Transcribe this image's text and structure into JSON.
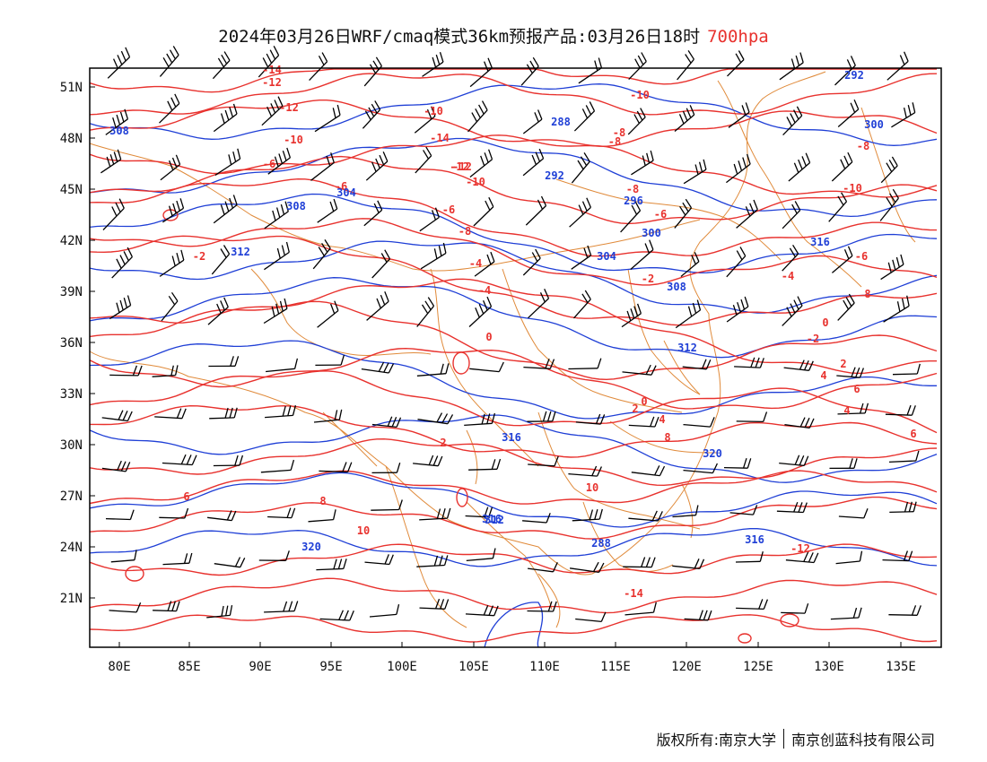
{
  "title": {
    "main": "2024年03月26日WRF/cmaq模式36km预报产品:03月26日18时",
    "level": "700hpa"
  },
  "axes": {
    "lon_labels": [
      "80E",
      "85E",
      "90E",
      "95E",
      "100E",
      "105E",
      "110E",
      "115E",
      "120E",
      "125E",
      "130E",
      "135E"
    ],
    "lat_labels": [
      "51N",
      "48N",
      "45N",
      "42N",
      "39N",
      "36N",
      "33N",
      "30N",
      "27N",
      "24N",
      "21N"
    ]
  },
  "colors": {
    "temperature": "#e8322e",
    "geopotential": "#1f3fd6",
    "border": "#e08a3a",
    "wind": "#000000"
  },
  "temperature_labels": [
    "-14",
    "-12",
    "-12",
    "-10",
    "-10",
    "-12",
    "-14",
    "-12",
    "-10",
    "-8",
    "-8",
    "-6",
    "-6",
    "-6",
    "-8",
    "-6",
    "-4",
    "-4",
    "-2",
    "-2",
    "0",
    "0",
    "2",
    "2",
    "4",
    "4",
    "6",
    "6",
    "8",
    "8",
    "10",
    "10",
    "-14",
    "-12",
    "-10",
    "-8",
    "-6",
    "-4",
    "-2",
    "0",
    "2",
    "4",
    "6",
    "8",
    "-10",
    "-8"
  ],
  "geopotential_labels": [
    "308",
    "304",
    "308",
    "312",
    "288",
    "292",
    "296",
    "300",
    "304",
    "308",
    "312",
    "316",
    "316",
    "320",
    "288",
    "292",
    "300",
    "316",
    "320",
    "316",
    "312"
  ],
  "footer": {
    "left": "版权所有:南京大学",
    "right": "南京创蓝科技有限公司"
  }
}
